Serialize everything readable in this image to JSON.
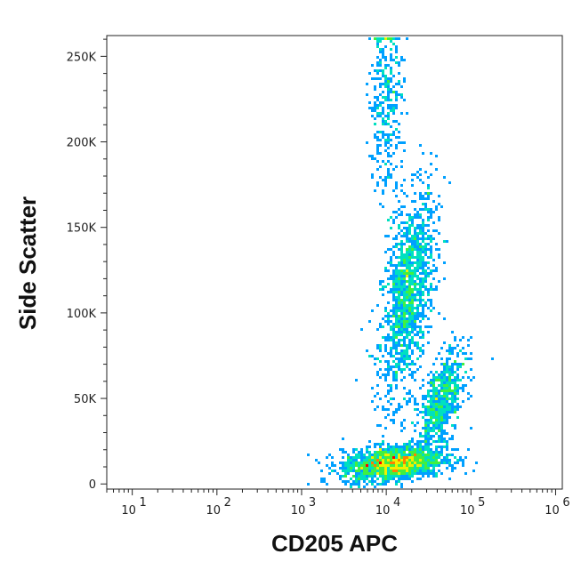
{
  "chart_data": {
    "type": "scatter",
    "subtype": "flow-cytometry density dot plot",
    "xlabel": "CD205 APC",
    "ylabel": "Side Scatter",
    "x_scale": "log",
    "xlim": [
      5,
      1200000
    ],
    "ylim": [
      -3000,
      262143
    ],
    "x_ticks": [
      {
        "value": 10,
        "base": "10",
        "exp": "1"
      },
      {
        "value": 100,
        "base": "10",
        "exp": "2"
      },
      {
        "value": 1000,
        "base": "10",
        "exp": "3"
      },
      {
        "value": 10000,
        "base": "10",
        "exp": "4"
      },
      {
        "value": 100000,
        "base": "10",
        "exp": "5"
      },
      {
        "value": 1000000,
        "base": "10",
        "exp": "6"
      }
    ],
    "y_ticks": [
      {
        "value": 0,
        "label": "0"
      },
      {
        "value": 50000,
        "label": "50K"
      },
      {
        "value": 100000,
        "label": "100K"
      },
      {
        "value": 150000,
        "label": "150K"
      },
      {
        "value": 200000,
        "label": "200K"
      },
      {
        "value": 250000,
        "label": "250K"
      }
    ],
    "populations": [
      {
        "name": "CD205+ high-SSC population",
        "x_center": 18000,
        "y_center": 110000,
        "x_spread_log": 0.16,
        "y_spread": 26000,
        "tilt": 0.55,
        "relative_density": 1.0
      },
      {
        "name": "low-SSC population",
        "x_center": 12000,
        "y_center": 12000,
        "x_spread_log": 0.3,
        "y_spread": 5000,
        "tilt": 0.3,
        "relative_density": 1.2
      },
      {
        "name": "intermediate-SSC population",
        "x_center": 45000,
        "y_center": 48000,
        "x_spread_log": 0.14,
        "y_spread": 12000,
        "tilt": 0.7,
        "relative_density": 0.5
      },
      {
        "name": "saturated upper events",
        "x_center": 10000,
        "y_center": 225000,
        "x_spread_log": 0.1,
        "y_spread": 30000,
        "tilt": 0,
        "relative_density": 0.25
      }
    ],
    "grid": false,
    "legend": "none",
    "colormap": [
      "#0000ff",
      "#00a0ff",
      "#00e0c0",
      "#40f040",
      "#f0f000",
      "#ff8000",
      "#ff0000"
    ]
  }
}
